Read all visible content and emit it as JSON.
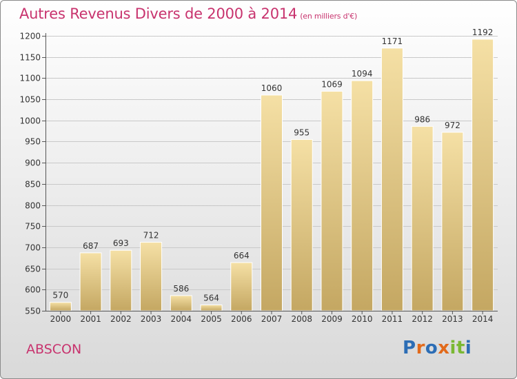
{
  "header": {
    "title": "Autres Revenus Divers de 2000 à 2014",
    "unit": "(en milliers d'€)"
  },
  "footer": {
    "town": "ABSCON",
    "logo_text": "Proxiti"
  },
  "colors": {
    "title": "#c8336e",
    "bar_light": "#f3dc9e",
    "bar_dark": "#c7ab66",
    "logo_letters": [
      "#2c6db5",
      "#e26a1b",
      "#2c6db5",
      "#e26a1b",
      "#7ab833",
      "#7ab833",
      "#2c6db5"
    ]
  },
  "chart_data": {
    "type": "bar",
    "title": "Autres Revenus Divers de 2000 à 2014",
    "subtitle": "(en milliers d'€)",
    "categories": [
      "2000",
      "2001",
      "2002",
      "2003",
      "2004",
      "2005",
      "2006",
      "2007",
      "2008",
      "2009",
      "2010",
      "2011",
      "2012",
      "2013",
      "2014"
    ],
    "values": [
      570,
      687,
      693,
      712,
      586,
      564,
      664,
      1060,
      955,
      1069,
      1094,
      1171,
      986,
      972,
      1192
    ],
    "yticks": [
      550,
      600,
      650,
      700,
      750,
      800,
      850,
      900,
      950,
      1000,
      1050,
      1100,
      1150,
      1200
    ],
    "ylim": [
      550,
      1200
    ],
    "grid": true,
    "legend": "none"
  }
}
